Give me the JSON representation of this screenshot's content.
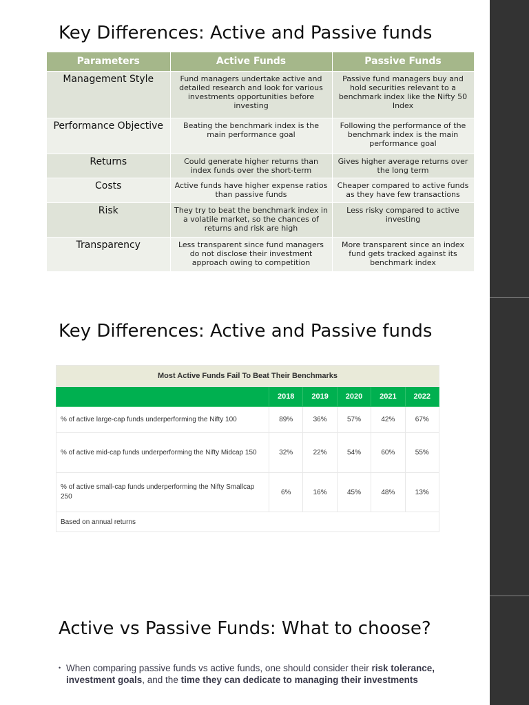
{
  "slide1": {
    "title": "Key Differences: Active and Passive funds",
    "headers": [
      "Parameters",
      "Active Funds",
      "Passive Funds"
    ],
    "rows": [
      [
        "Management Style",
        "Fund managers undertake active and detailed research and look for various investments opportunities before investing",
        "Passive fund managers buy and hold securities relevant to a benchmark index like the Nifty 50 Index"
      ],
      [
        "Performance Objective",
        "Beating the benchmark index is the main performance goal",
        "Following the performance of the benchmark index is the main performance goal"
      ],
      [
        "Returns",
        "Could generate higher returns than index funds over the short-term",
        "Gives higher average returns over the long term"
      ],
      [
        "Costs",
        "Active funds have higher expense ratios than passive funds",
        "Cheaper compared to active funds as they have few transactions"
      ],
      [
        "Risk",
        "They try to beat the benchmark index in a volatile market, so the chances of returns and risk are high",
        "Less risky compared to active investing"
      ],
      [
        "Transparency",
        "Less transparent since fund managers do not disclose their investment approach owing to competition",
        "More transparent since an index fund gets tracked against its benchmark index"
      ]
    ],
    "header_color": "#a5b78a"
  },
  "slide2": {
    "title": "Key Differences: Active and Passive funds",
    "table_title": "Most Active Funds Fail To Beat Their Benchmarks",
    "years": [
      "2018",
      "2019",
      "2020",
      "2021",
      "2022"
    ],
    "rows": [
      {
        "label": "% of active large-cap funds underperforming the Nifty 100",
        "values": [
          "89%",
          "36%",
          "57%",
          "42%",
          "67%"
        ]
      },
      {
        "label": "% of active mid-cap funds underperforming the Nifty Midcap 150",
        "values": [
          "32%",
          "22%",
          "54%",
          "60%",
          "55%"
        ]
      },
      {
        "label": "% of active small-cap funds underperforming the Nifty Smallcap 250",
        "values": [
          "6%",
          "16%",
          "45%",
          "48%",
          "13%"
        ]
      }
    ],
    "footnote": "Based on annual returns",
    "header_color": "#00b050"
  },
  "slide3": {
    "title": "Active vs Passive Funds: What to choose?",
    "bullet": {
      "t1": "When comparing passive funds vs active funds, one should consider their ",
      "b1": "risk tolerance, investment goals",
      "t2": ", and the ",
      "b2": "time they can dedicate to managing their investments"
    }
  }
}
